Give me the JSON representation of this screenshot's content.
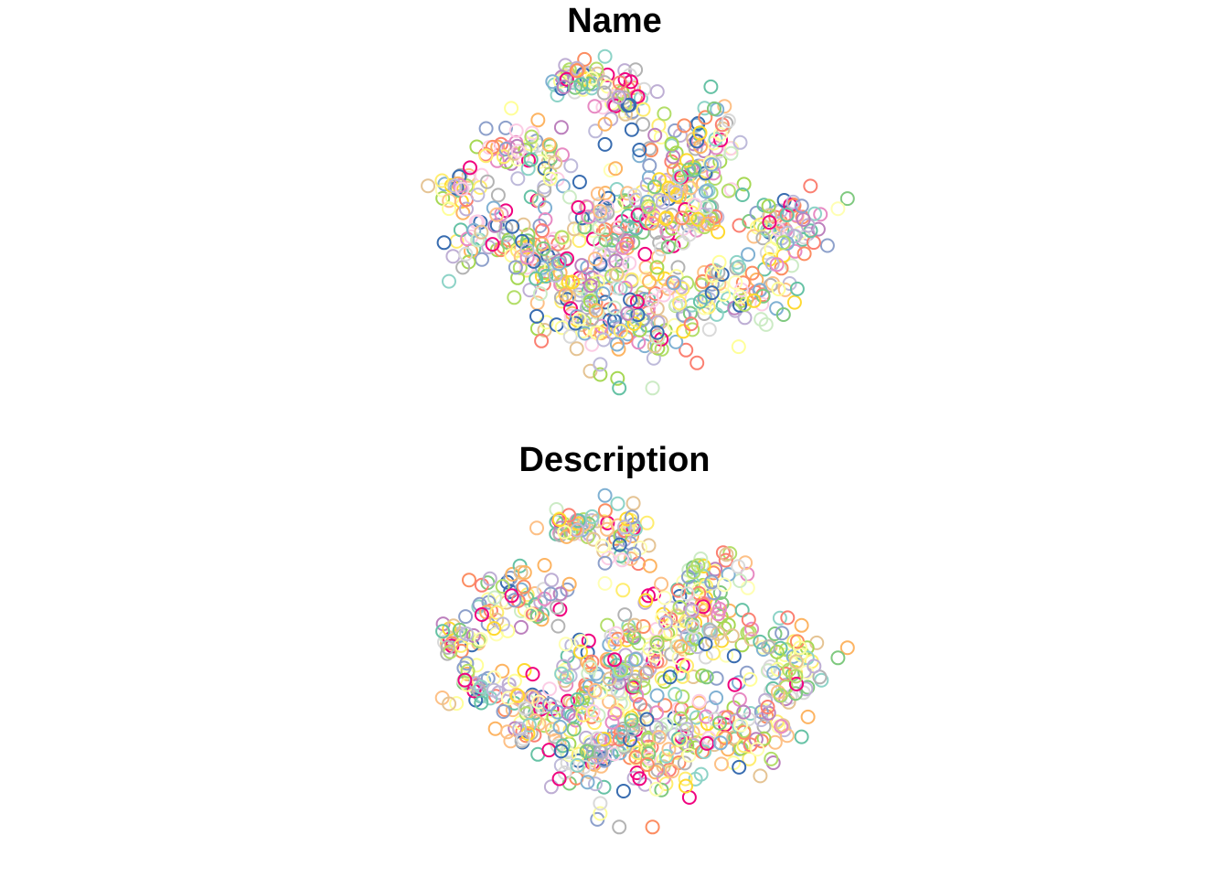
{
  "palette": [
    "#7FC97F",
    "#BEAED4",
    "#FDC086",
    "#FFFF99",
    "#386CB0",
    "#F0027F",
    "#66C2A5",
    "#FC8D62",
    "#8DA0CB",
    "#E78AC3",
    "#A6D854",
    "#FFD92F",
    "#E5C494",
    "#B3B3B3",
    "#FB8072",
    "#80B1D3",
    "#FDB462",
    "#B3DE69",
    "#FCCDE5",
    "#BC80BD",
    "#CCEBC5",
    "#FFED6F",
    "#D9D9D9",
    "#FFFFB3",
    "#BEBADA",
    "#8DD3C7"
  ],
  "chart_data": [
    {
      "type": "scatter",
      "title": "Name",
      "marker": "open-circle",
      "axes_visible": false,
      "grid": false,
      "legend": "none",
      "xlim": [
        0,
        100
      ],
      "ylim": [
        0,
        100
      ],
      "clusters": [
        {
          "cx": 42,
          "cy": 92,
          "sx": 3.5,
          "sy": 2.5,
          "n": 40
        },
        {
          "cx": 52,
          "cy": 88,
          "sx": 3,
          "sy": 4,
          "n": 40
        },
        {
          "cx": 18,
          "cy": 60,
          "sx": 3,
          "sy": 3,
          "n": 30
        },
        {
          "cx": 31,
          "cy": 70,
          "sx": 5,
          "sy": 5,
          "n": 60
        },
        {
          "cx": 23,
          "cy": 44,
          "sx": 4,
          "sy": 4,
          "n": 40
        },
        {
          "cx": 34,
          "cy": 38,
          "sx": 4,
          "sy": 5,
          "n": 50
        },
        {
          "cx": 44,
          "cy": 26,
          "sx": 6,
          "sy": 6,
          "n": 70
        },
        {
          "cx": 56,
          "cy": 22,
          "sx": 6,
          "sy": 7,
          "n": 80
        },
        {
          "cx": 50,
          "cy": 48,
          "sx": 7,
          "sy": 8,
          "n": 110
        },
        {
          "cx": 65,
          "cy": 56,
          "sx": 7,
          "sy": 8,
          "n": 110
        },
        {
          "cx": 74,
          "cy": 30,
          "sx": 8,
          "sy": 5,
          "n": 80
        },
        {
          "cx": 87,
          "cy": 49,
          "sx": 4,
          "sy": 6,
          "n": 60
        },
        {
          "cx": 68,
          "cy": 74,
          "sx": 4,
          "sy": 6,
          "n": 50
        }
      ],
      "outliers": [
        {
          "x": 51,
          "y": 1
        },
        {
          "x": 58,
          "y": 1
        },
        {
          "x": 47,
          "y": 5
        },
        {
          "x": 47,
          "y": 8
        },
        {
          "x": 48,
          "y": 73
        },
        {
          "x": 48,
          "y": 79
        },
        {
          "x": 99,
          "y": 57
        },
        {
          "x": 97,
          "y": 54
        },
        {
          "x": 48,
          "y": 99
        },
        {
          "x": 74,
          "y": 80
        }
      ]
    },
    {
      "type": "scatter",
      "title": "Description",
      "marker": "open-circle",
      "axes_visible": false,
      "grid": false,
      "legend": "none",
      "xlim": [
        0,
        100
      ],
      "ylim": [
        0,
        100
      ],
      "clusters": [
        {
          "cx": 42,
          "cy": 90,
          "sx": 3.5,
          "sy": 2.5,
          "n": 40
        },
        {
          "cx": 52,
          "cy": 86,
          "sx": 3,
          "sy": 4,
          "n": 40
        },
        {
          "cx": 18,
          "cy": 56,
          "sx": 3,
          "sy": 3,
          "n": 30
        },
        {
          "cx": 31,
          "cy": 68,
          "sx": 5,
          "sy": 5,
          "n": 60
        },
        {
          "cx": 23,
          "cy": 42,
          "sx": 4,
          "sy": 4,
          "n": 40
        },
        {
          "cx": 34,
          "cy": 36,
          "sx": 4,
          "sy": 5,
          "n": 50
        },
        {
          "cx": 44,
          "cy": 24,
          "sx": 6,
          "sy": 6,
          "n": 70
        },
        {
          "cx": 56,
          "cy": 22,
          "sx": 6,
          "sy": 7,
          "n": 80
        },
        {
          "cx": 50,
          "cy": 46,
          "sx": 7,
          "sy": 8,
          "n": 110
        },
        {
          "cx": 65,
          "cy": 56,
          "sx": 7,
          "sy": 8,
          "n": 110
        },
        {
          "cx": 74,
          "cy": 28,
          "sx": 8,
          "sy": 5,
          "n": 80
        },
        {
          "cx": 87,
          "cy": 48,
          "sx": 4,
          "sy": 6,
          "n": 60
        },
        {
          "cx": 68,
          "cy": 72,
          "sx": 4,
          "sy": 6,
          "n": 50
        }
      ],
      "outliers": [
        {
          "x": 51,
          "y": 1
        },
        {
          "x": 58,
          "y": 1
        },
        {
          "x": 47,
          "y": 5
        },
        {
          "x": 47,
          "y": 8
        },
        {
          "x": 48,
          "y": 73
        },
        {
          "x": 48,
          "y": 79
        },
        {
          "x": 99,
          "y": 54
        },
        {
          "x": 97,
          "y": 51
        },
        {
          "x": 48,
          "y": 99
        },
        {
          "x": 76,
          "y": 78
        }
      ]
    }
  ]
}
